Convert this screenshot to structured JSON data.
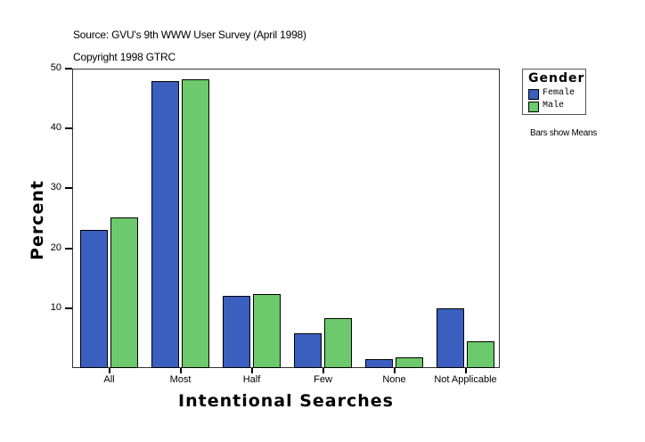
{
  "header": {
    "source": "Source: GVU's 9th WWW User Survey (April 1998)",
    "copyright": "Copyright 1998 GTRC"
  },
  "legend": {
    "title": "Gender",
    "items": [
      {
        "label": "Female",
        "color": "#3a5fbf"
      },
      {
        "label": "Male",
        "color": "#6cc96c"
      }
    ]
  },
  "note": "Bars show Means",
  "axes": {
    "y_title": "Percent",
    "x_title": "Intentional Searches",
    "y_ticks": [
      "50",
      "40",
      "30",
      "20",
      "10"
    ],
    "x_ticks": [
      "All",
      "Most",
      "Half",
      "Few",
      "None",
      "Not Applicable"
    ]
  },
  "chart_data": {
    "type": "bar",
    "title": "Source: GVU's 9th WWW User Survey (April 1998)",
    "subtitle": "Copyright 1998 GTRC",
    "xlabel": "Intentional Searches",
    "ylabel": "Percent",
    "ylim": [
      0,
      50
    ],
    "y_ticks": [
      10,
      20,
      30,
      40,
      50
    ],
    "categories": [
      "All",
      "Most",
      "Half",
      "Few",
      "None",
      "Not Applicable"
    ],
    "series": [
      {
        "name": "Female",
        "color": "#3a5fbf",
        "values": [
          23.1,
          47.9,
          12.1,
          5.8,
          1.5,
          9.9
        ]
      },
      {
        "name": "Male",
        "color": "#6cc96c",
        "values": [
          25.1,
          48.2,
          12.4,
          8.4,
          1.8,
          4.5
        ]
      }
    ],
    "legend": {
      "title": "Gender",
      "position": "right"
    },
    "annotations": [
      "Bars show Means"
    ],
    "grid": false
  }
}
